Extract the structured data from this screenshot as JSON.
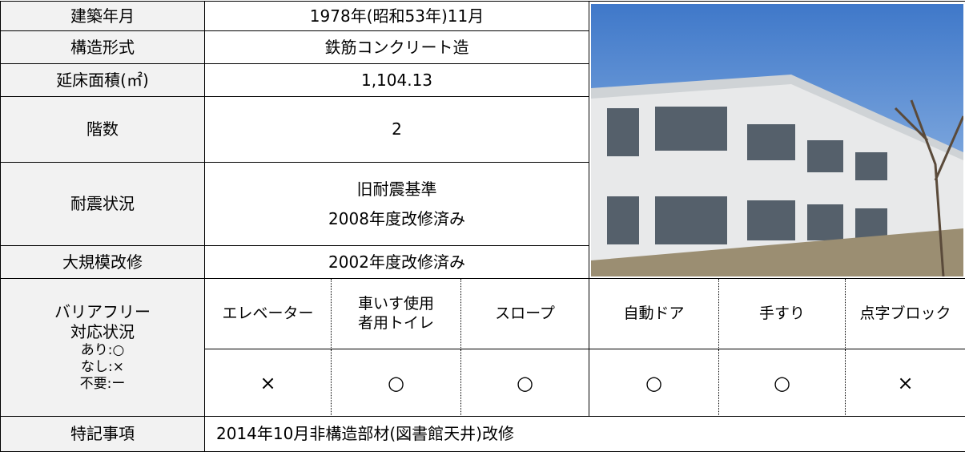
{
  "rows": [
    {
      "label": "建築年月",
      "value": "1978年(昭和53年)11月"
    },
    {
      "label": "構造形式",
      "value": "鉄筋コンクリート造"
    },
    {
      "label": "延床面積(㎡)",
      "value": "1,104.13"
    },
    {
      "label": "階数",
      "value": "2"
    },
    {
      "label": "耐震状況",
      "value_lines": [
        "旧耐震基準",
        "2008年度改修済み"
      ]
    },
    {
      "label": "大規模改修",
      "value": "2002年度改修済み"
    }
  ],
  "barrier_free": {
    "label_lines": [
      "バリアフリー",
      "対応状況",
      "あり:○",
      "なし:×",
      "不要:ー"
    ],
    "headers": [
      [
        "エレベーター"
      ],
      [
        "車いす使用",
        "者用トイレ"
      ],
      [
        "スロープ"
      ],
      [
        "自動ドア"
      ],
      [
        "手すり"
      ],
      [
        "点字ブロック"
      ]
    ],
    "values": [
      "×",
      "○",
      "○",
      "○",
      "○",
      "×"
    ]
  },
  "notes": {
    "label": "特記事項",
    "value": "2014年10月非構造部材(図書館天井)改修"
  }
}
